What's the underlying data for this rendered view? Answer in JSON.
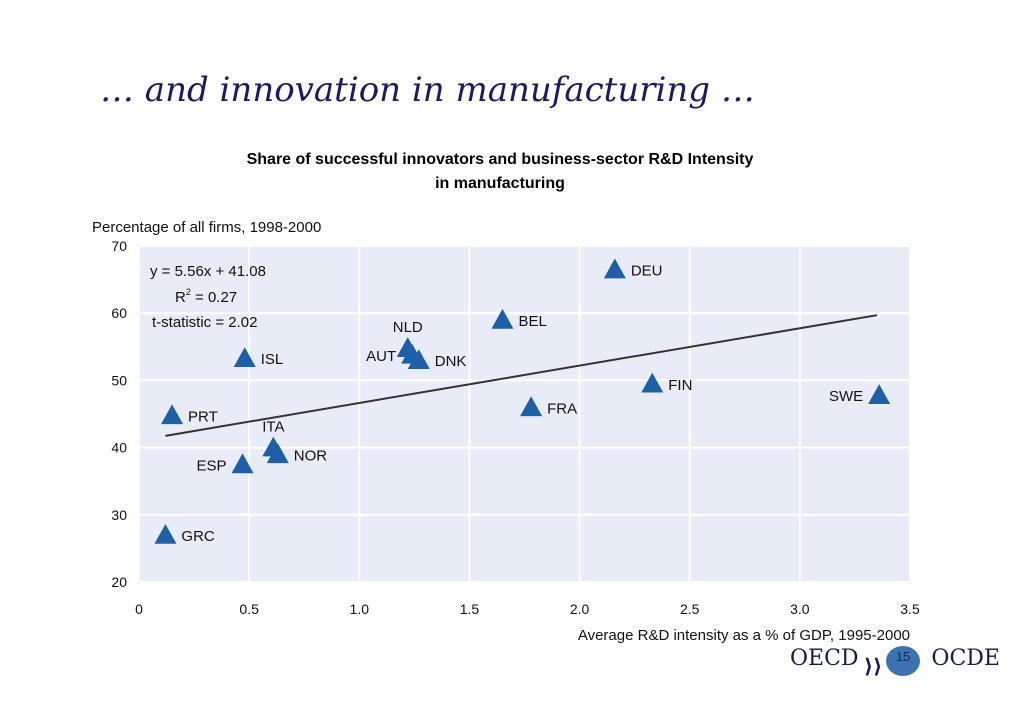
{
  "slide": {
    "title": "… and innovation in manufacturing …",
    "chart_title_line1": "Share of successful innovators  and business-sector R&D Intensity",
    "chart_title_line2": "in manufacturing"
  },
  "footer": {
    "oecd_label": "OECD",
    "ocde_label": "OCDE",
    "page_number": "15"
  },
  "colors": {
    "plot_background": "#e8ecf6",
    "marker": "#1f5fa8",
    "trend_line": "#333333",
    "title_color": "#1a1a66"
  },
  "chart_data": {
    "type": "scatter",
    "ylabel": "Percentage of all firms, 1998-2000",
    "xlabel": "Average R&D intensity as a % of GDP, 1995-2000",
    "xlim": [
      0,
      3.5
    ],
    "ylim": [
      20,
      70
    ],
    "xticks": [
      "0",
      "0.5",
      "1.0",
      "1.5",
      "2.0",
      "2.5",
      "3.0",
      "3.5"
    ],
    "yticks": [
      "20",
      "30",
      "40",
      "50",
      "60",
      "70"
    ],
    "grid": true,
    "annotation": {
      "equation": "y = 5.56x + 41.08",
      "r2_label": "R",
      "r2_sup": "2",
      "r2_value": " = 0.27",
      "tstat": "t-statistic = 2.02"
    },
    "trendline": {
      "slope": 5.56,
      "intercept": 41.08,
      "x_range": [
        0.12,
        3.35
      ]
    },
    "points": [
      {
        "label": "DEU",
        "x": 2.16,
        "y": 66.5,
        "label_side": "right"
      },
      {
        "label": "BEL",
        "x": 1.65,
        "y": 59.0,
        "label_side": "right"
      },
      {
        "label": "NLD",
        "x": 1.22,
        "y": 54.8,
        "label_side": "above"
      },
      {
        "label": "AUT",
        "x": 1.24,
        "y": 53.8,
        "label_side": "left"
      },
      {
        "label": "DNK",
        "x": 1.27,
        "y": 53.0,
        "label_side": "right"
      },
      {
        "label": "ISL",
        "x": 0.48,
        "y": 53.3,
        "label_side": "right"
      },
      {
        "label": "FIN",
        "x": 2.33,
        "y": 49.5,
        "label_side": "right"
      },
      {
        "label": "SWE",
        "x": 3.36,
        "y": 47.8,
        "label_side": "left"
      },
      {
        "label": "FRA",
        "x": 1.78,
        "y": 46.0,
        "label_side": "right"
      },
      {
        "label": "PRT",
        "x": 0.15,
        "y": 44.8,
        "label_side": "right"
      },
      {
        "label": "ITA",
        "x": 0.61,
        "y": 40.0,
        "label_side": "above"
      },
      {
        "label": "NOR",
        "x": 0.63,
        "y": 39.0,
        "label_side": "right"
      },
      {
        "label": "ESP",
        "x": 0.47,
        "y": 37.5,
        "label_side": "left"
      },
      {
        "label": "GRC",
        "x": 0.12,
        "y": 27.0,
        "label_side": "right"
      }
    ]
  }
}
